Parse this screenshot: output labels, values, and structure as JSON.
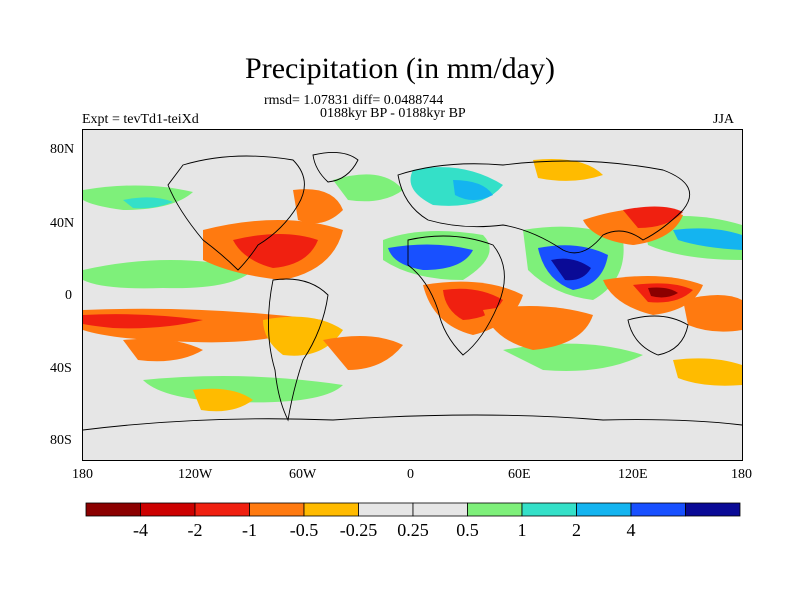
{
  "title": "Precipitation (in mm/day)",
  "stats_line": "rmsd= 1.07831 diff= 0.0488744",
  "period_line": "0188kyr BP - 0188kyr BP",
  "experiment": "Expt = tevTd1-teiXd",
  "season": "JJA",
  "lat_labels": [
    "80N",
    "40N",
    "0",
    "40S",
    "80S"
  ],
  "lon_labels": [
    "180",
    "120W",
    "60W",
    "0",
    "60E",
    "120E",
    "180"
  ],
  "colorbar": {
    "colors": [
      "#8b0000",
      "#cc0000",
      "#f02010",
      "#ff7a10",
      "#ffbb00",
      "#e6e6e6",
      "#e6e6e6",
      "#7ef07a",
      "#34e0c8",
      "#14b4f0",
      "#1850ff",
      "#0a0a96"
    ],
    "labels": [
      "-4",
      "-2",
      "-1",
      "-0.5",
      "-0.25",
      "0.25",
      "0.5",
      "1",
      "2",
      "4"
    ]
  }
}
